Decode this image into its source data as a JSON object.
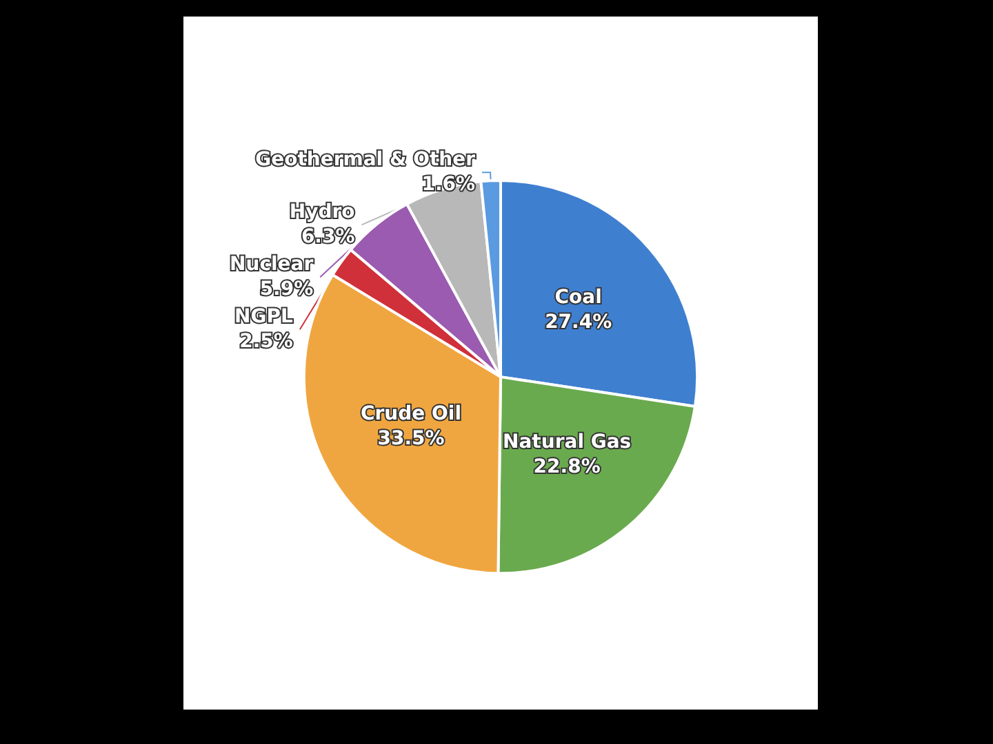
{
  "chart_data": {
    "type": "pie",
    "categories": [
      "Coal",
      "Natural Gas",
      "Crude Oil",
      "NGPL",
      "Nuclear",
      "Hydro",
      "Geothermal & Other"
    ],
    "values": [
      27.4,
      22.8,
      33.5,
      2.5,
      5.9,
      6.3,
      1.6
    ],
    "value_labels": [
      "27.4%",
      "22.8%",
      "33.5%",
      "2.5%",
      "5.9%",
      "6.3%",
      "1.6%"
    ],
    "colors": [
      "#3f7fd0",
      "#6aaa4e",
      "#f0a640",
      "#d0303a",
      "#9a5bb0",
      "#b8b8b8",
      "#5a9ae0"
    ],
    "legend": false
  }
}
